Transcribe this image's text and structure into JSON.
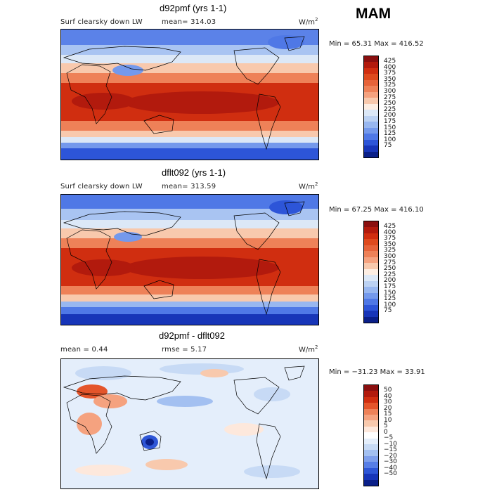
{
  "season": "MAM",
  "units": {
    "base": "W/m",
    "exp": "2"
  },
  "panels": [
    {
      "title": "d92pmf (yrs 1-1)",
      "field": "Surf clearsky down LW",
      "mean_text": "mean= 314.03",
      "minmax_text": "Min =  65.31 Max = 416.52",
      "colorbar": {
        "colors": [
          "#8a0f0f",
          "#b21a0d",
          "#d02e10",
          "#de4a1e",
          "#e6633a",
          "#ee8158",
          "#f5a27f",
          "#f8c9ad",
          "#fdeee3",
          "#dce8f7",
          "#bcd2f3",
          "#98b7f0",
          "#7499ec",
          "#4f78e6",
          "#2d55d8",
          "#1735b8",
          "#0a1f88"
        ],
        "ticks": [
          "425",
          "400",
          "375",
          "350",
          "325",
          "300",
          "275",
          "250",
          "225",
          "200",
          "175",
          "150",
          "125",
          "100",
          "75"
        ]
      }
    },
    {
      "title": "dflt092 (yrs 1-1)",
      "field": "Surf clearsky down LW",
      "mean_text": "mean= 313.59",
      "minmax_text": "Min =  67.25 Max = 416.10",
      "colorbar": {
        "colors": [
          "#8a0f0f",
          "#b21a0d",
          "#d02e10",
          "#de4a1e",
          "#e6633a",
          "#ee8158",
          "#f5a27f",
          "#f8c9ad",
          "#fdeee3",
          "#dce8f7",
          "#bcd2f3",
          "#98b7f0",
          "#7499ec",
          "#4f78e6",
          "#2d55d8",
          "#1735b8",
          "#0a1f88"
        ],
        "ticks": [
          "425",
          "400",
          "375",
          "350",
          "325",
          "300",
          "275",
          "250",
          "225",
          "200",
          "175",
          "150",
          "125",
          "100",
          "75"
        ]
      }
    },
    {
      "title": "d92pmf - dflt092",
      "mean_text": "mean =    0.44",
      "rmse_text": "rmse =    5.17",
      "minmax_text": "Min = −31.23 Max =   33.91",
      "colorbar": {
        "colors": [
          "#8a0f0f",
          "#b21a0d",
          "#d02e10",
          "#e4552b",
          "#ee8158",
          "#f5a27f",
          "#f8c9ad",
          "#fde8dc",
          "#ffffff",
          "#e4eefb",
          "#c7daf5",
          "#a3c0f1",
          "#7e9fec",
          "#577ee6",
          "#2e56d6",
          "#1735b8",
          "#0a1f88"
        ],
        "ticks": [
          "50",
          "40",
          "30",
          "20",
          "15",
          "10",
          "5",
          "0",
          "−5",
          "−10",
          "−15",
          "−20",
          "−30",
          "−40",
          "−50"
        ]
      }
    }
  ]
}
